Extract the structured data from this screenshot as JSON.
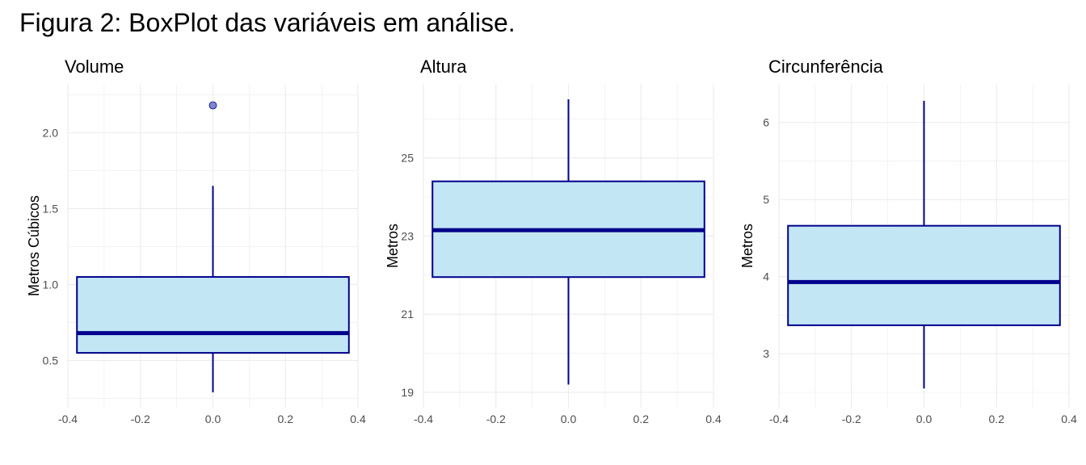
{
  "figure_title": "Figura 2: BoxPlot das variáveis em análise.",
  "colors": {
    "box_fill": "#c3e6f5",
    "box_stroke": "#00008b",
    "outlier_fill": "#7f86cf",
    "grid": "#ebebeb",
    "tick_text": "#4d4d4d"
  },
  "chart_data": [
    {
      "type": "box",
      "title": "Volume",
      "xlabel": "",
      "ylabel": "Metros Cúbicos",
      "xlim": [
        -0.4,
        0.4
      ],
      "ylim": [
        0.29,
        2.22
      ],
      "xticks": [
        -0.4,
        -0.2,
        0.0,
        0.2,
        0.4
      ],
      "xtick_labels": [
        "-0.4",
        "-0.2",
        "0.0",
        "0.2",
        "0.4"
      ],
      "yticks": [
        0.5,
        1.0,
        1.5,
        2.0
      ],
      "ytick_labels": [
        "0.5",
        "1.0",
        "1.5",
        "2.0"
      ],
      "box": {
        "x_left": -0.375,
        "x_right": 0.375,
        "whisker_low": 0.29,
        "q1": 0.55,
        "median": 0.68,
        "q3": 1.05,
        "whisker_high": 1.65
      },
      "outliers": [
        2.18
      ],
      "grid": true
    },
    {
      "type": "box",
      "title": "Altura",
      "xlabel": "",
      "ylabel": "Metros",
      "xlim": [
        -0.4,
        0.4
      ],
      "ylim": [
        19.0,
        26.5
      ],
      "xticks": [
        -0.4,
        -0.2,
        0.0,
        0.2,
        0.4
      ],
      "xtick_labels": [
        "-0.4",
        "-0.2",
        "0.0",
        "0.2",
        "0.4"
      ],
      "yticks": [
        19,
        21,
        23,
        25
      ],
      "ytick_labels": [
        "19",
        "21",
        "23",
        "25"
      ],
      "box": {
        "x_left": -0.375,
        "x_right": 0.375,
        "whisker_low": 19.2,
        "q1": 21.95,
        "median": 23.15,
        "q3": 24.4,
        "whisker_high": 26.5
      },
      "outliers": [],
      "grid": true
    },
    {
      "type": "box",
      "title": "Circunferência",
      "xlabel": "",
      "ylabel": "Metros",
      "xlim": [
        -0.4,
        0.4
      ],
      "ylim": [
        2.5,
        6.3
      ],
      "xticks": [
        -0.4,
        -0.2,
        0.0,
        0.2,
        0.4
      ],
      "xtick_labels": [
        "-0.4",
        "-0.2",
        "0.0",
        "0.2",
        "0.4"
      ],
      "yticks": [
        3,
        4,
        5,
        6
      ],
      "ytick_labels": [
        "3",
        "4",
        "5",
        "6"
      ],
      "box": {
        "x_left": -0.375,
        "x_right": 0.375,
        "whisker_low": 2.55,
        "q1": 3.37,
        "median": 3.93,
        "q3": 4.66,
        "whisker_high": 6.28
      },
      "outliers": [],
      "grid": true
    }
  ]
}
